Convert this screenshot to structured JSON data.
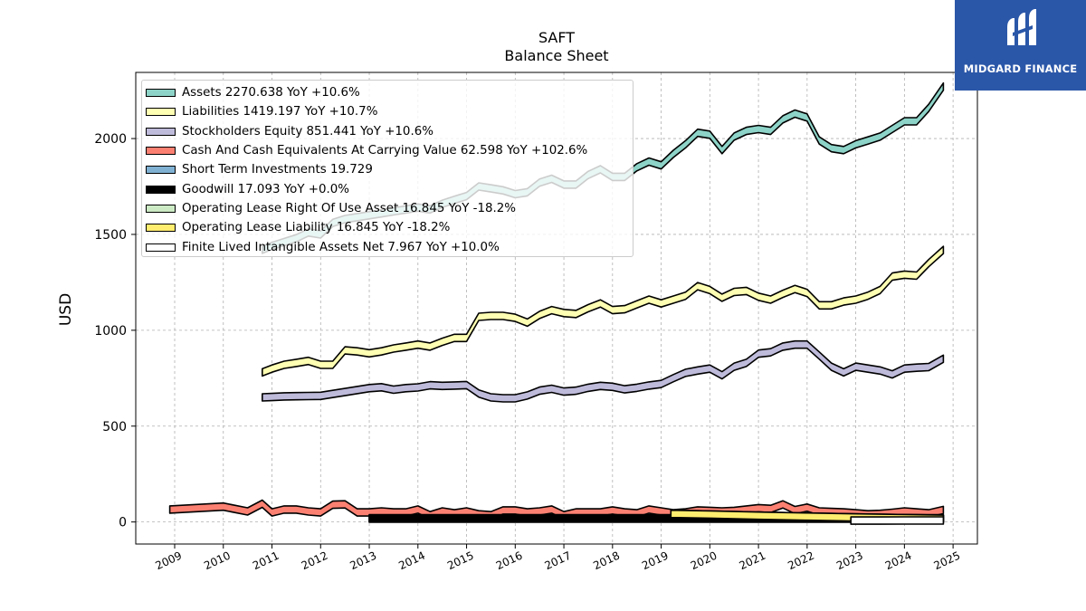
{
  "logo": {
    "brand": "MIDGARD FINANCE",
    "color": "#2b57a8"
  },
  "chart_data": {
    "type": "area",
    "title": "SAFT",
    "subtitle": "Balance  Sheet",
    "ylabel": "USD",
    "xlabel": "",
    "ylim": [
      -115,
      2345
    ],
    "xlim": [
      2008.2,
      2025.5
    ],
    "yticks": [
      0,
      500,
      1000,
      1500,
      2000
    ],
    "xticks": [
      "2009",
      "2010",
      "2011",
      "2012",
      "2013",
      "2014",
      "2015",
      "2016",
      "2017",
      "2018",
      "2019",
      "2020",
      "2021",
      "2022",
      "2023",
      "2024",
      "2025"
    ],
    "grid": true,
    "legend_position": "top-left",
    "series": [
      {
        "name": "Assets",
        "legend": "Assets  2270.638 YoY +10.6%",
        "color": "#8dd3c7",
        "x": [
          2010.8,
          2011.0,
          2011.25,
          2011.5,
          2011.75,
          2012.0,
          2012.25,
          2012.5,
          2012.75,
          2013.0,
          2013.25,
          2013.5,
          2013.75,
          2014.0,
          2014.25,
          2014.5,
          2014.75,
          2015.0,
          2015.25,
          2015.5,
          2015.75,
          2016.0,
          2016.25,
          2016.5,
          2016.75,
          2017.0,
          2017.25,
          2017.5,
          2017.75,
          2018.0,
          2018.25,
          2018.5,
          2018.75,
          2019.0,
          2019.25,
          2019.5,
          2019.75,
          2020.0,
          2020.25,
          2020.5,
          2020.75,
          2021.0,
          2021.25,
          2021.5,
          2021.75,
          2022.0,
          2022.25,
          2022.5,
          2022.75,
          2023.0,
          2023.25,
          2023.5,
          2023.75,
          2024.0,
          2024.25,
          2024.5,
          2024.8
        ],
        "values": [
          1420,
          1440,
          1460,
          1480,
          1510,
          1500,
          1560,
          1580,
          1590,
          1600,
          1610,
          1620,
          1630,
          1640,
          1630,
          1660,
          1680,
          1700,
          1750,
          1740,
          1730,
          1710,
          1720,
          1770,
          1790,
          1760,
          1760,
          1810,
          1840,
          1800,
          1800,
          1850,
          1880,
          1860,
          1920,
          1970,
          2030,
          2020,
          1940,
          2010,
          2040,
          2050,
          2040,
          2100,
          2130,
          2110,
          1990,
          1950,
          1940,
          1970,
          1990,
          2010,
          2050,
          2090,
          2090,
          2160,
          2270.638
        ]
      },
      {
        "name": "Liabilities",
        "legend": "Liabilities  1419.197 YoY +10.7%",
        "color": "#ffffb3",
        "x": [
          2010.8,
          2011.0,
          2011.25,
          2011.5,
          2011.75,
          2012.0,
          2012.25,
          2012.5,
          2012.75,
          2013.0,
          2013.25,
          2013.5,
          2013.75,
          2014.0,
          2014.25,
          2014.5,
          2014.75,
          2015.0,
          2015.25,
          2015.5,
          2015.75,
          2016.0,
          2016.25,
          2016.5,
          2016.75,
          2017.0,
          2017.25,
          2017.5,
          2017.75,
          2018.0,
          2018.25,
          2018.5,
          2018.75,
          2019.0,
          2019.25,
          2019.5,
          2019.75,
          2020.0,
          2020.25,
          2020.5,
          2020.75,
          2021.0,
          2021.25,
          2021.5,
          2021.75,
          2022.0,
          2022.25,
          2022.5,
          2022.75,
          2023.0,
          2023.25,
          2023.5,
          2023.75,
          2024.0,
          2024.25,
          2024.5,
          2024.8
        ],
        "values": [
          780,
          800,
          820,
          830,
          840,
          820,
          820,
          895,
          890,
          880,
          890,
          905,
          915,
          925,
          915,
          940,
          960,
          960,
          1070,
          1075,
          1075,
          1065,
          1040,
          1080,
          1105,
          1090,
          1085,
          1115,
          1140,
          1105,
          1110,
          1135,
          1160,
          1140,
          1160,
          1180,
          1230,
          1210,
          1170,
          1200,
          1205,
          1175,
          1160,
          1190,
          1215,
          1195,
          1130,
          1130,
          1150,
          1160,
          1180,
          1210,
          1280,
          1290,
          1285,
          1350,
          1419.197
        ]
      },
      {
        "name": "Stockholders Equity",
        "legend": "Stockholders Equity  851.441 YoY +10.6%",
        "color": "#bebada",
        "x": [
          2010.8,
          2011.0,
          2011.25,
          2011.5,
          2011.75,
          2012.0,
          2012.25,
          2012.5,
          2012.75,
          2013.0,
          2013.25,
          2013.5,
          2013.75,
          2014.0,
          2014.25,
          2014.5,
          2014.75,
          2015.0,
          2015.25,
          2015.5,
          2015.75,
          2016.0,
          2016.25,
          2016.5,
          2016.75,
          2017.0,
          2017.25,
          2017.5,
          2017.75,
          2018.0,
          2018.25,
          2018.5,
          2018.75,
          2019.0,
          2019.25,
          2019.5,
          2019.75,
          2020.0,
          2020.25,
          2020.5,
          2020.75,
          2021.0,
          2021.25,
          2021.5,
          2021.75,
          2022.0,
          2022.25,
          2022.5,
          2022.75,
          2023.0,
          2023.25,
          2023.5,
          2023.75,
          2024.0,
          2024.25,
          2024.5,
          2024.8
        ],
        "values": [
          650,
          652,
          655,
          656,
          657,
          658,
          668,
          678,
          688,
          698,
          703,
          690,
          698,
          702,
          713,
          710,
          712,
          714,
          670,
          650,
          645,
          645,
          660,
          685,
          695,
          680,
          685,
          700,
          710,
          705,
          692,
          700,
          712,
          720,
          750,
          778,
          790,
          800,
          765,
          810,
          830,
          878,
          885,
          915,
          925,
          925,
          868,
          810,
          780,
          810,
          800,
          790,
          770,
          800,
          805,
          808,
          851.441
        ]
      },
      {
        "name": "Cash And Cash Equivalents At Carrying Value",
        "legend": "Cash And Cash Equivalents At Carrying Value  62.598 YoY +102.6%",
        "color": "#fb8072",
        "x": [
          2008.9,
          2010.0,
          2010.5,
          2010.8,
          2011.0,
          2011.25,
          2011.5,
          2011.75,
          2012.0,
          2012.25,
          2012.5,
          2012.75,
          2013.0,
          2013.25,
          2013.5,
          2013.75,
          2014.0,
          2014.25,
          2014.5,
          2014.75,
          2015.0,
          2015.25,
          2015.5,
          2015.75,
          2016.0,
          2016.25,
          2016.5,
          2016.75,
          2017.0,
          2017.25,
          2017.5,
          2017.75,
          2018.0,
          2018.25,
          2018.5,
          2018.75,
          2019.0,
          2019.25,
          2019.5,
          2019.75,
          2020.0,
          2020.25,
          2020.5,
          2020.75,
          2021.0,
          2021.25,
          2021.5,
          2021.75,
          2022.0,
          2022.25,
          2022.5,
          2022.75,
          2023.0,
          2023.25,
          2023.5,
          2023.75,
          2024.0,
          2024.25,
          2024.5,
          2024.8
        ],
        "values": [
          65,
          80,
          55,
          95,
          50,
          65,
          65,
          55,
          50,
          90,
          92,
          50,
          50,
          55,
          50,
          50,
          65,
          35,
          55,
          45,
          55,
          40,
          35,
          60,
          60,
          50,
          55,
          65,
          35,
          50,
          50,
          50,
          60,
          50,
          45,
          65,
          55,
          45,
          50,
          60,
          58,
          55,
          58,
          65,
          72,
          68,
          92,
          62,
          75,
          55,
          52,
          50,
          45,
          40,
          42,
          48,
          55,
          50,
          45,
          62.598
        ]
      },
      {
        "name": "Short Term Investments",
        "legend": "Short Term Investments  19.729",
        "color": "#80b1d3",
        "x": [
          2013.0,
          2018.0,
          2022.9,
          2024.8
        ],
        "values": [
          19.729,
          19.729,
          19.729,
          19.729
        ]
      },
      {
        "name": "Goodwill",
        "legend": "Goodwill  17.093 YoY +0.0%",
        "color": "#000000",
        "x": [
          2013.0,
          2024.8
        ],
        "values": [
          17.093,
          17.093
        ]
      },
      {
        "name": "Operating Lease Right Of Use Asset",
        "legend": "Operating Lease Right Of Use Asset  16.845 YoY -18.2%",
        "color": "#ccebc5",
        "x": [
          2019.2,
          2020.0,
          2021.0,
          2022.0,
          2022.9,
          2024.8
        ],
        "values": [
          42,
          39,
          33,
          28,
          24,
          16.845
        ]
      },
      {
        "name": "Operating Lease Liability",
        "legend": "Operating Lease Liability  16.845 YoY -18.2%",
        "color": "#ffed6f",
        "x": [
          2019.2,
          2020.0,
          2021.0,
          2022.0,
          2022.9,
          2024.8
        ],
        "values": [
          42,
          39,
          33,
          28,
          24,
          16.845
        ]
      },
      {
        "name": "Finite Lived Intangible Assets Net",
        "legend": "Finite Lived Intangible Assets Net  7.967 YoY +10.0%",
        "color": "#ffffff",
        "x": [
          2022.9,
          2023.5,
          2024.0,
          2024.8
        ],
        "values": [
          7.2,
          7.4,
          7.6,
          7.967
        ]
      }
    ]
  }
}
